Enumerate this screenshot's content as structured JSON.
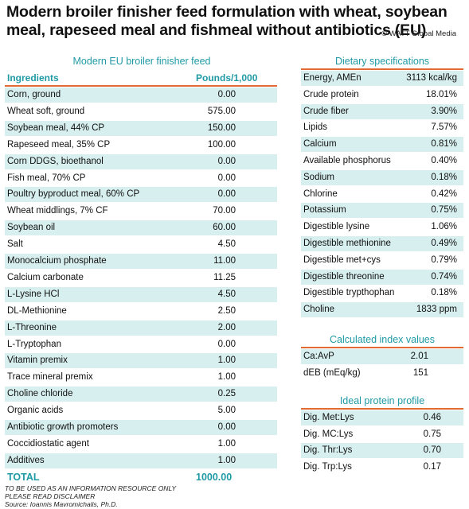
{
  "title": "Modern broiler finisher feed formulation with wheat, soybean meal, rapeseed meal and fishmeal without antibiotics (EU)",
  "credit": "© WATT Global Media",
  "feed_table": {
    "heading": "Modern EU broiler finisher feed",
    "col_ingredients": "Ingredients",
    "col_pounds": "Pounds/1,000",
    "rows": [
      {
        "name": "Corn, ground",
        "value": "0.00"
      },
      {
        "name": "Wheat soft, ground",
        "value": "575.00"
      },
      {
        "name": "Soybean meal, 44% CP",
        "value": "150.00"
      },
      {
        "name": "Rapeseed meal, 35% CP",
        "value": "100.00"
      },
      {
        "name": "Corn DDGS, bioethanol",
        "value": "0.00"
      },
      {
        "name": "Fish meal, 70% CP",
        "value": "0.00"
      },
      {
        "name": "Poultry byproduct meal, 60% CP",
        "value": "0.00"
      },
      {
        "name": "Wheat middlings, 7% CF",
        "value": "70.00"
      },
      {
        "name": "Soybean oil",
        "value": "60.00"
      },
      {
        "name": "Salt",
        "value": "4.50"
      },
      {
        "name": "Monocalcium phosphate",
        "value": "11.00"
      },
      {
        "name": "Calcium carbonate",
        "value": "11.25"
      },
      {
        "name": "L-Lysine HCl",
        "value": "4.50"
      },
      {
        "name": "DL-Methionine",
        "value": "2.50"
      },
      {
        "name": "L-Threonine",
        "value": "2.00"
      },
      {
        "name": "L-Tryptophan",
        "value": "0.00"
      },
      {
        "name": "Vitamin premix",
        "value": "1.00"
      },
      {
        "name": "Trace mineral premix",
        "value": "1.00"
      },
      {
        "name": "Choline chloride",
        "value": "0.25"
      },
      {
        "name": "Organic acids",
        "value": "5.00"
      },
      {
        "name": "Antibiotic growth promoters",
        "value": "0.00"
      },
      {
        "name": "Coccidiostatic agent",
        "value": "1.00"
      },
      {
        "name": "Additives",
        "value": "1.00"
      }
    ],
    "total_label": "TOTAL",
    "total_value": "1000.00"
  },
  "dietary": {
    "heading": "Dietary specifications",
    "rows": [
      {
        "name": "Energy, AMEn",
        "value": "3113 kcal/kg"
      },
      {
        "name": "Crude protein",
        "value": "18.01%"
      },
      {
        "name": "Crude fiber",
        "value": "3.90%"
      },
      {
        "name": "Lipids",
        "value": "7.57%"
      },
      {
        "name": "Calcium",
        "value": "0.81%"
      },
      {
        "name": "Available phosphorus",
        "value": "0.40%"
      },
      {
        "name": "Sodium",
        "value": "0.18%"
      },
      {
        "name": "Chlorine",
        "value": "0.42%"
      },
      {
        "name": "Potassium",
        "value": "0.75%"
      },
      {
        "name": "Digestible lysine",
        "value": "1.06%"
      },
      {
        "name": "Digestible methionine",
        "value": "0.49%"
      },
      {
        "name": "Digestible met+cys",
        "value": "0.79%"
      },
      {
        "name": "Digestible threonine",
        "value": "0.74%"
      },
      {
        "name": "Digestible trypthophan",
        "value": "0.18%"
      },
      {
        "name": "Choline",
        "value": "1833 ppm"
      }
    ]
  },
  "index": {
    "heading": "Calculated index values",
    "rows": [
      {
        "name": "Ca:AvP",
        "value": "2.01"
      },
      {
        "name": "dEB (mEq/kg)",
        "value": "151"
      }
    ]
  },
  "protein": {
    "heading": "Ideal protein profile",
    "rows": [
      {
        "name": "Dig. Met:Lys",
        "value": "0.46"
      },
      {
        "name": "Dig. MC:Lys",
        "value": "0.75"
      },
      {
        "name": "Dig. Thr:Lys",
        "value": "0.70"
      },
      {
        "name": "Dig. Trp:Lys",
        "value": "0.17"
      }
    ]
  },
  "footer": [
    "TO BE USED AS AN INFORMATION RESOURCE ONLY",
    "PLEASE READ DISCLAIMER",
    "Source: Ioannis Mavromichalis, Ph.D."
  ],
  "colors": {
    "accent_teal": "#1f9aa5",
    "rule_orange": "#e26a35",
    "row_shade": "#d8efef"
  }
}
